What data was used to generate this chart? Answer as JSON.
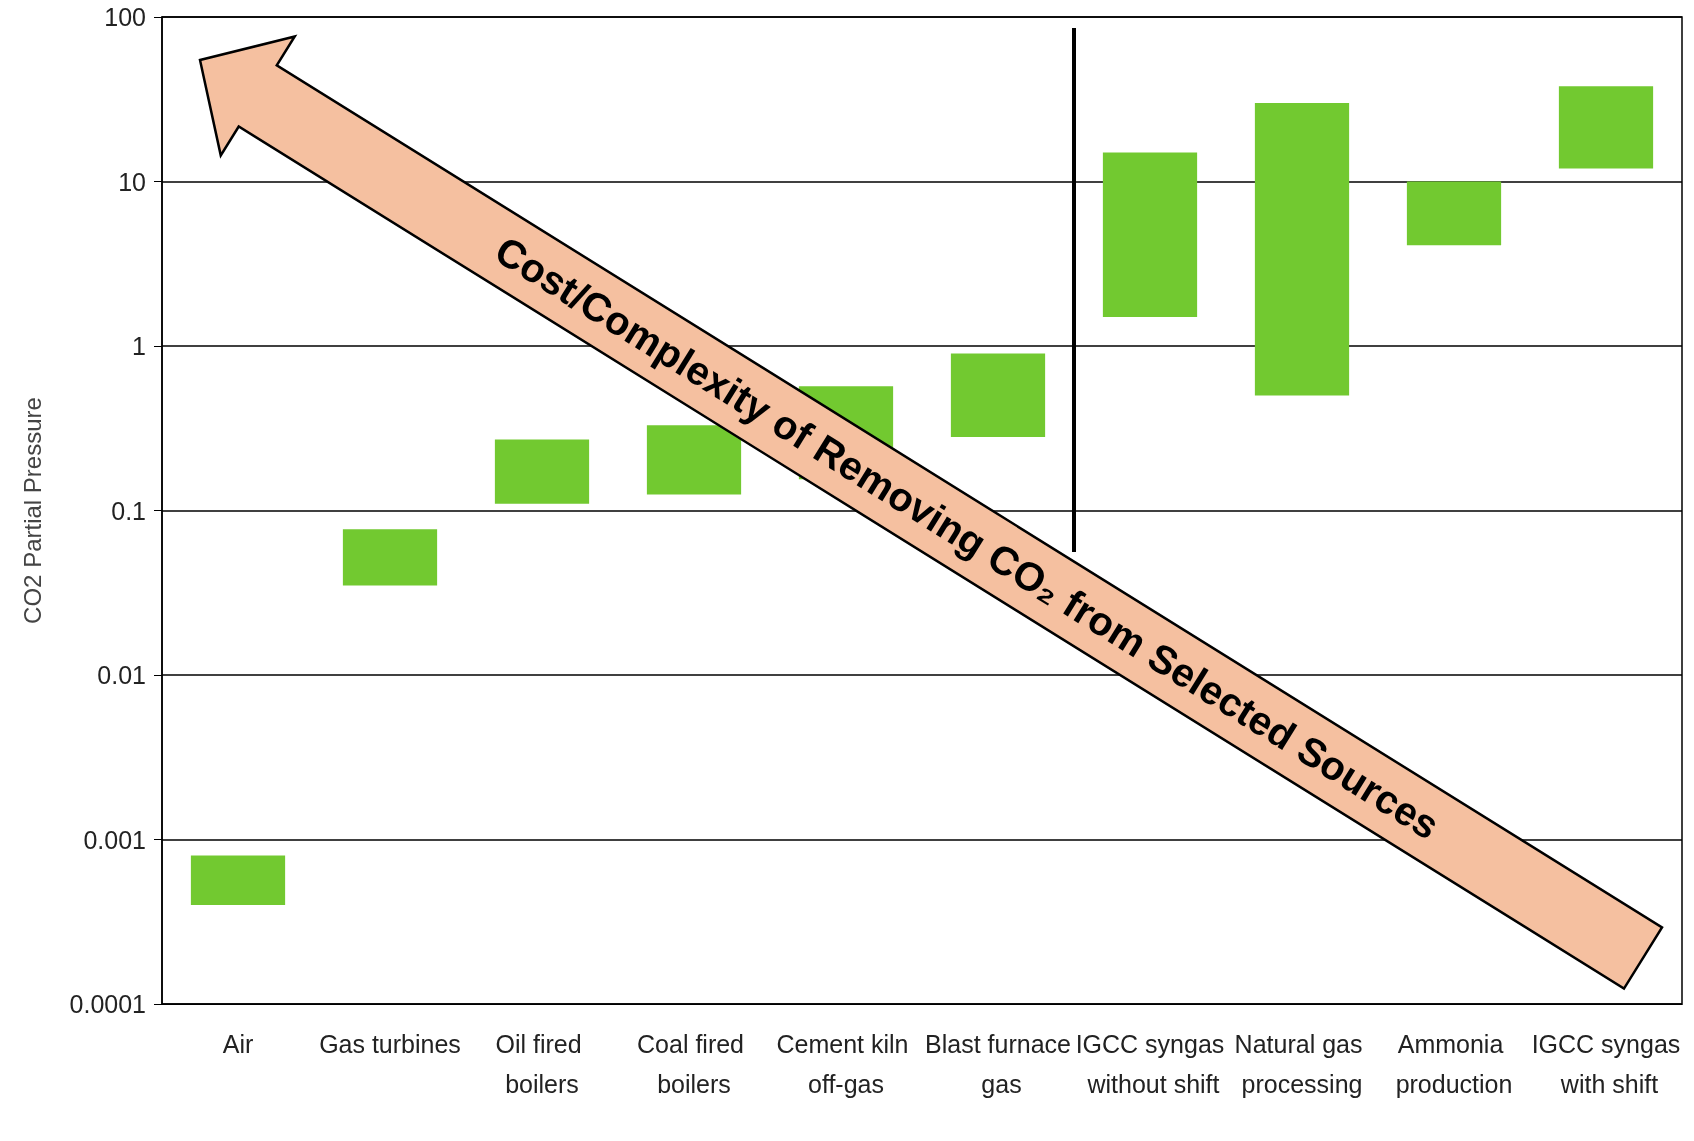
{
  "chart_data": {
    "type": "bar",
    "ylabel": "CO2 Partial Pressure",
    "categories": [
      "Air",
      "Gas turbines",
      "Oil fired boilers",
      "Coal fired boilers",
      "Cement kiln off-gas",
      "Blast furnace gas",
      "IGCC syngas without shift",
      "Natural gas processing",
      "Ammonia production",
      "IGCC syngas with shift"
    ],
    "base": [
      0.0004,
      0.035,
      0.11,
      0.125,
      0.155,
      0.28,
      1.5,
      0.5,
      4.1,
      12
    ],
    "values": [
      0.0004,
      0.042,
      0.16,
      0.205,
      0.415,
      0.62,
      13.5,
      29.5,
      5.9,
      26
    ],
    "color": "#72c930",
    "log": "y",
    "ylim": [
      0.0001,
      100
    ],
    "yticks": [
      0.0001,
      0.001,
      0.01,
      0.1,
      1,
      10,
      100
    ],
    "grid": "y",
    "annotations": [
      "Cost/Complexity of Removing CO₂ from Selected Sources"
    ]
  }
}
